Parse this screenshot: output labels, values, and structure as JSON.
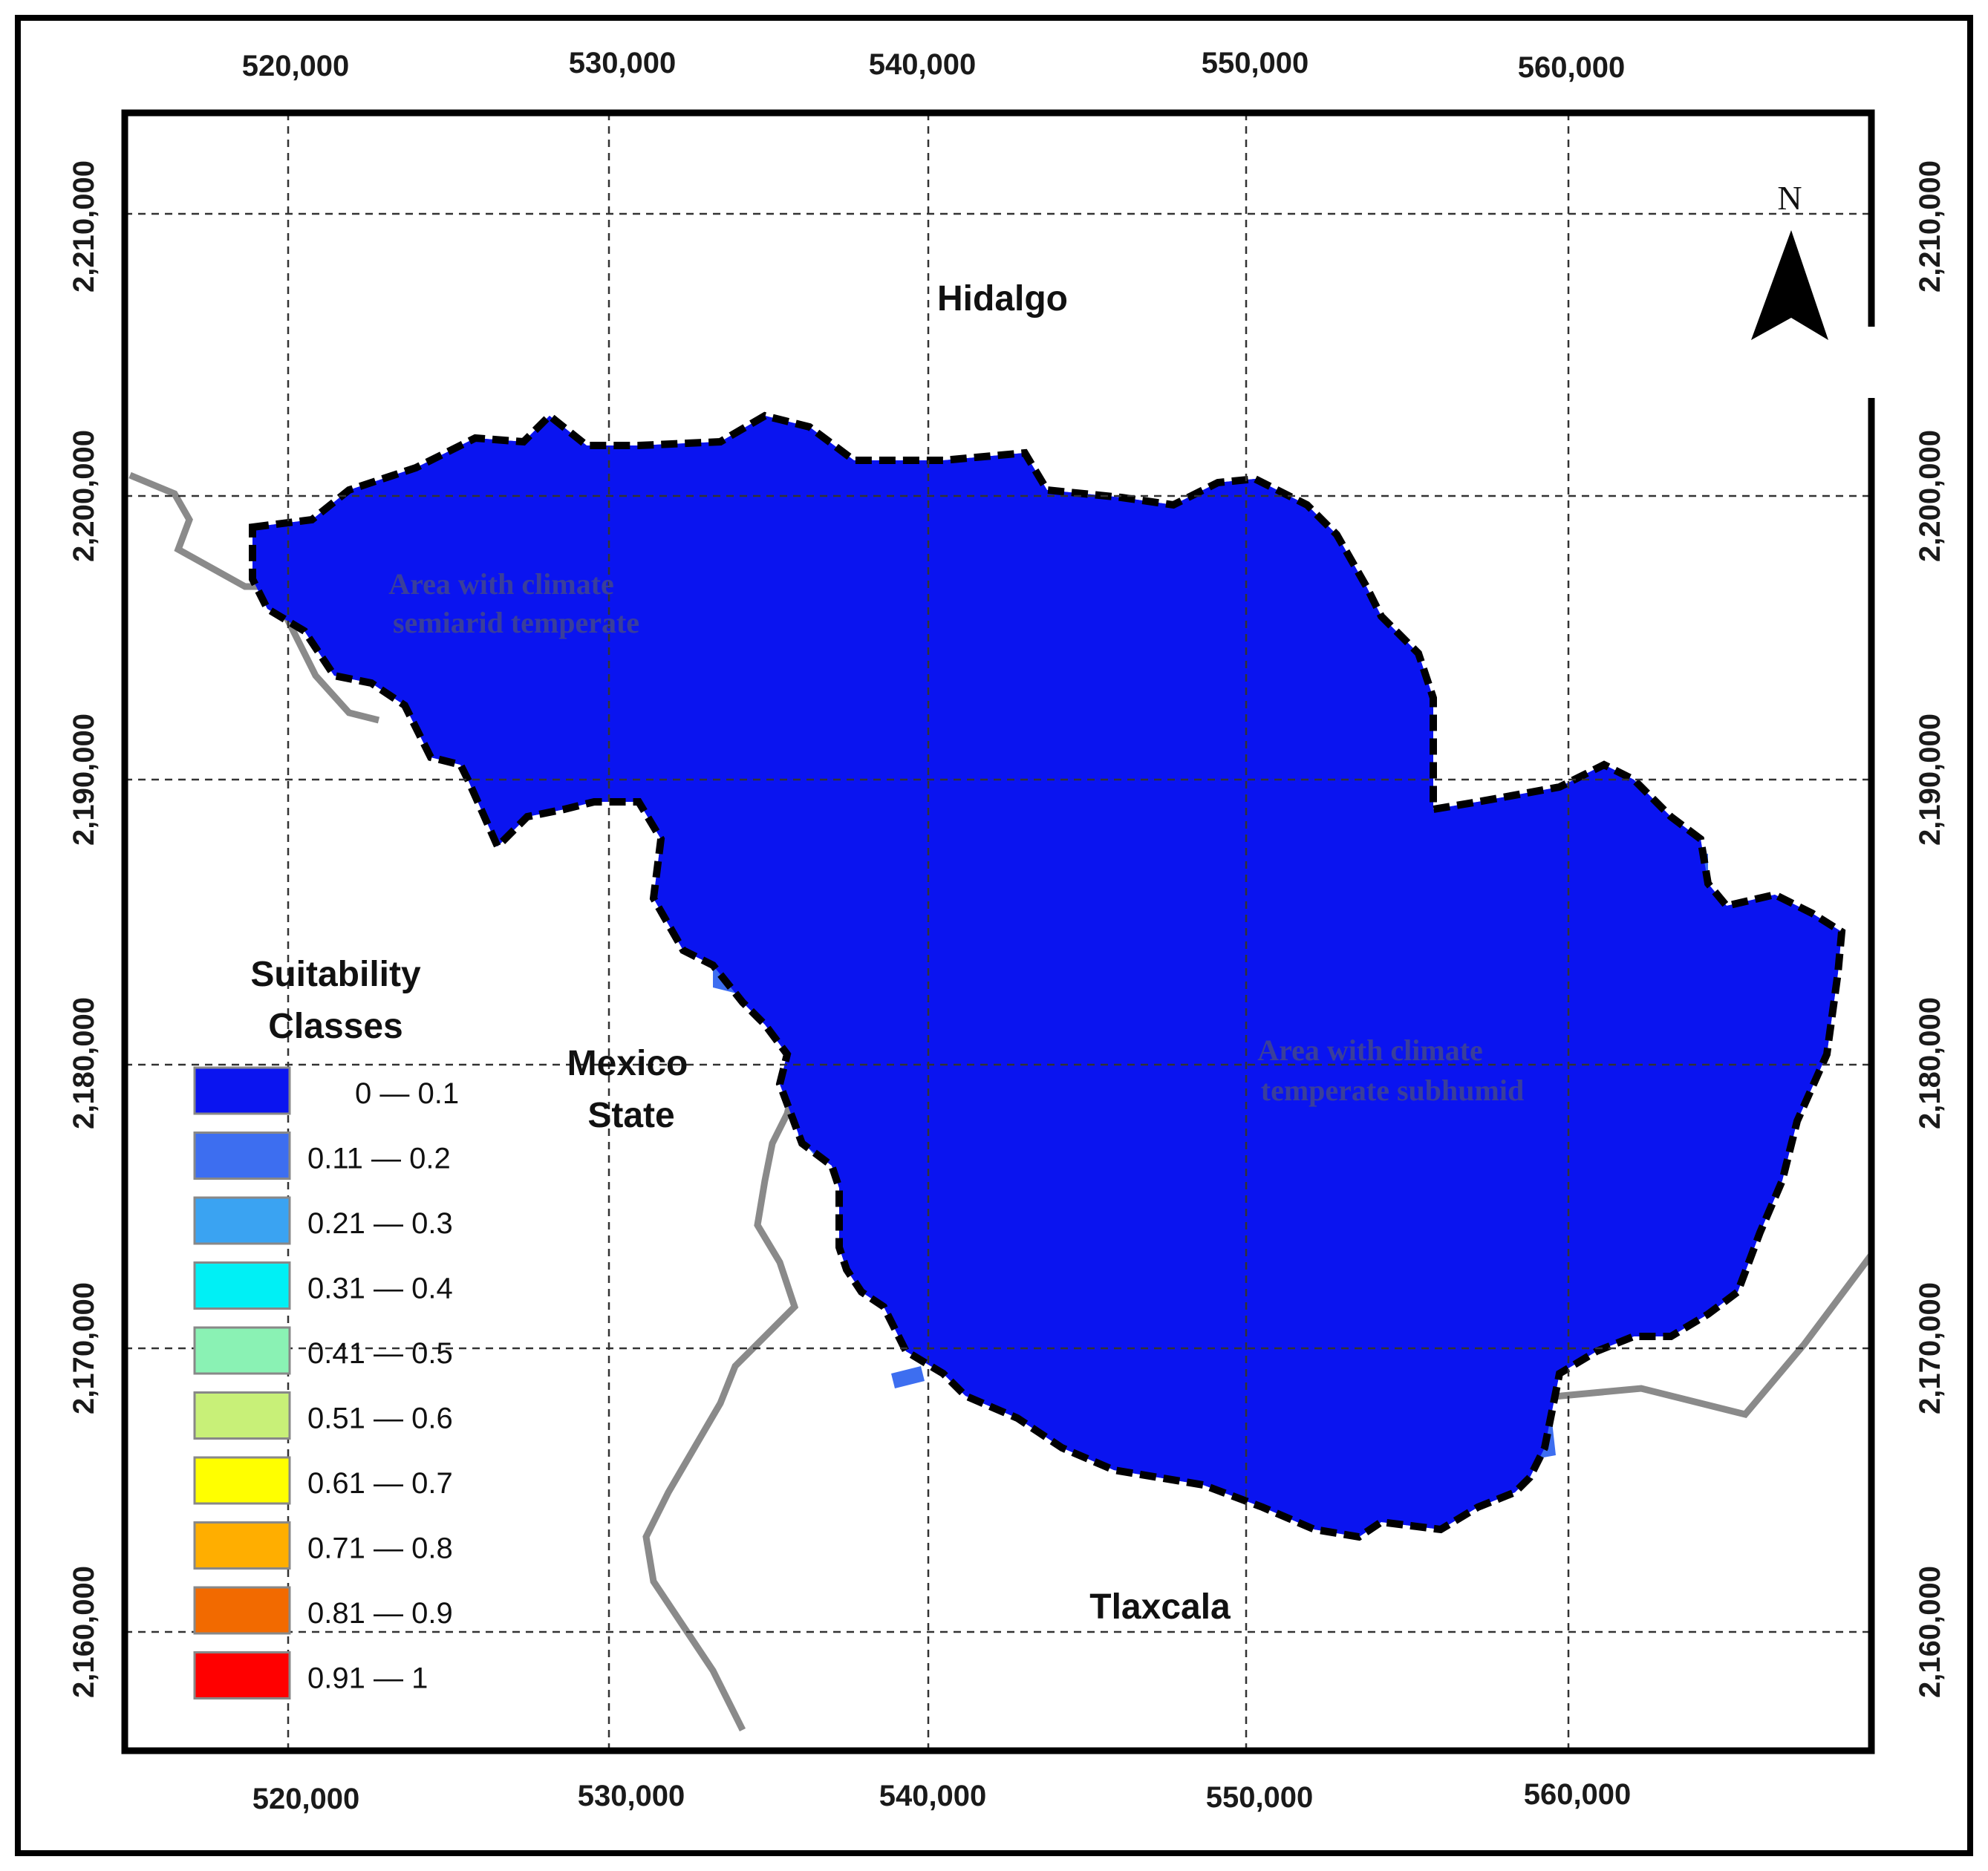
{
  "map": {
    "x_ticks": [
      "520,000",
      "530,000",
      "540,000",
      "550,000",
      "560,000"
    ],
    "y_ticks": [
      "2,210,000",
      "2,200,000",
      "2,190,000",
      "2,180,000",
      "2,170,000",
      "2,160,000"
    ],
    "states": {
      "hidalgo": "Hidalgo",
      "mexico_line1": "Mexico",
      "mexico_line2": "State",
      "tlaxcala": "Tlaxcala"
    },
    "climate_zones": {
      "semiarid_line1": "Area with climate",
      "semiarid_line2": "semiarid temperate",
      "subhumid_line1": "Area with climate",
      "subhumid_line2": "temperate subhumid"
    },
    "north_label": "N",
    "legend": {
      "title_line1": "Suitability",
      "title_line2": "Classes",
      "classes": [
        {
          "label": "0 — 0.1",
          "color": "#0a14f0"
        },
        {
          "label": "0.11 — 0.2",
          "color": "#3d6ef0"
        },
        {
          "label": "0.21 — 0.3",
          "color": "#3aa3f2"
        },
        {
          "label": "0.31 — 0.4",
          "color": "#00f0f5"
        },
        {
          "label": "0.41 — 0.5",
          "color": "#8af2b4"
        },
        {
          "label": "0.51 — 0.6",
          "color": "#c8f078"
        },
        {
          "label": "0.61 — 0.7",
          "color": "#ffff00"
        },
        {
          "label": "0.71 — 0.8",
          "color": "#ffae00"
        },
        {
          "label": "0.81 — 0.9",
          "color": "#f26a00"
        },
        {
          "label": "0.91 — 1",
          "color": "#ff0000"
        }
      ]
    }
  }
}
